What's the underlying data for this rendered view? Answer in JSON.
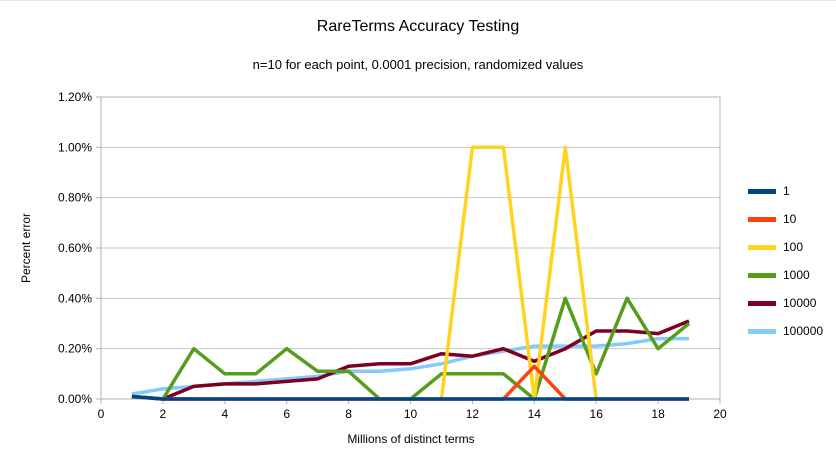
{
  "title": "RareTerms Accuracy Testing",
  "subtitle": "n=10 for each point, 0.0001 precision, randomized values",
  "chart_data": {
    "type": "line",
    "title": "RareTerms Accuracy Testing",
    "subtitle": "n=10 for each point, 0.0001 precision, randomized values",
    "xlabel": "Millions of distinct terms",
    "ylabel": "Percent error",
    "xlim": [
      0,
      20
    ],
    "ylim": [
      0,
      1.2
    ],
    "x_ticks": [
      0,
      2,
      4,
      6,
      8,
      10,
      12,
      14,
      16,
      18,
      20
    ],
    "y_tick_values": [
      0,
      0.2,
      0.4,
      0.6,
      0.8,
      1.0,
      1.2
    ],
    "y_ticks": [
      "0.00%",
      "0.20%",
      "0.40%",
      "0.60%",
      "0.80%",
      "1.00%",
      "1.20%"
    ],
    "grid": true,
    "legend_position": "right",
    "x": [
      1,
      2,
      3,
      4,
      5,
      6,
      7,
      8,
      9,
      10,
      11,
      12,
      13,
      14,
      15,
      16,
      17,
      18,
      19
    ],
    "series": [
      {
        "name": "1",
        "color": "#004586",
        "values": [
          0.01,
          0,
          0,
          0,
          0,
          0,
          0,
          0,
          0,
          0,
          0,
          0,
          0,
          0,
          0,
          0,
          0,
          0,
          0
        ]
      },
      {
        "name": "10",
        "color": "#ff420e",
        "values": [
          0.01,
          0,
          0,
          0,
          0,
          0,
          0,
          0,
          0,
          0,
          0,
          0,
          0,
          0.13,
          0,
          0,
          0,
          0,
          0
        ]
      },
      {
        "name": "100",
        "color": "#ffd320",
        "values": [
          0.01,
          0,
          0,
          0,
          0,
          0,
          0,
          0,
          0,
          0,
          0,
          1.0,
          1.0,
          0,
          1.0,
          0,
          0,
          0,
          0
        ]
      },
      {
        "name": "1000",
        "color": "#579d1c",
        "values": [
          0.01,
          0,
          0.2,
          0.1,
          0.1,
          0.2,
          0.11,
          0.11,
          0,
          0,
          0.1,
          0.1,
          0.1,
          0,
          0.4,
          0.1,
          0.4,
          0.2,
          0.3
        ]
      },
      {
        "name": "10000",
        "color": "#7e0021",
        "values": [
          0.01,
          0,
          0.05,
          0.06,
          0.06,
          0.07,
          0.08,
          0.13,
          0.14,
          0.14,
          0.18,
          0.17,
          0.2,
          0.15,
          0.2,
          0.27,
          0.27,
          0.26,
          0.31
        ]
      },
      {
        "name": "100000",
        "color": "#83caff",
        "values": [
          0.02,
          0.04,
          0.05,
          0.06,
          0.07,
          0.08,
          0.09,
          0.11,
          0.11,
          0.12,
          0.14,
          0.17,
          0.19,
          0.21,
          0.21,
          0.21,
          0.22,
          0.24,
          0.24
        ]
      }
    ],
    "draw_order": [
      "100000",
      "10000",
      "1000",
      "100",
      "10",
      "1"
    ],
    "colors": {
      "grid": "#c8c8c8",
      "axis": "#b3b3b3",
      "text": "#000000",
      "background": "#ffffff"
    }
  }
}
